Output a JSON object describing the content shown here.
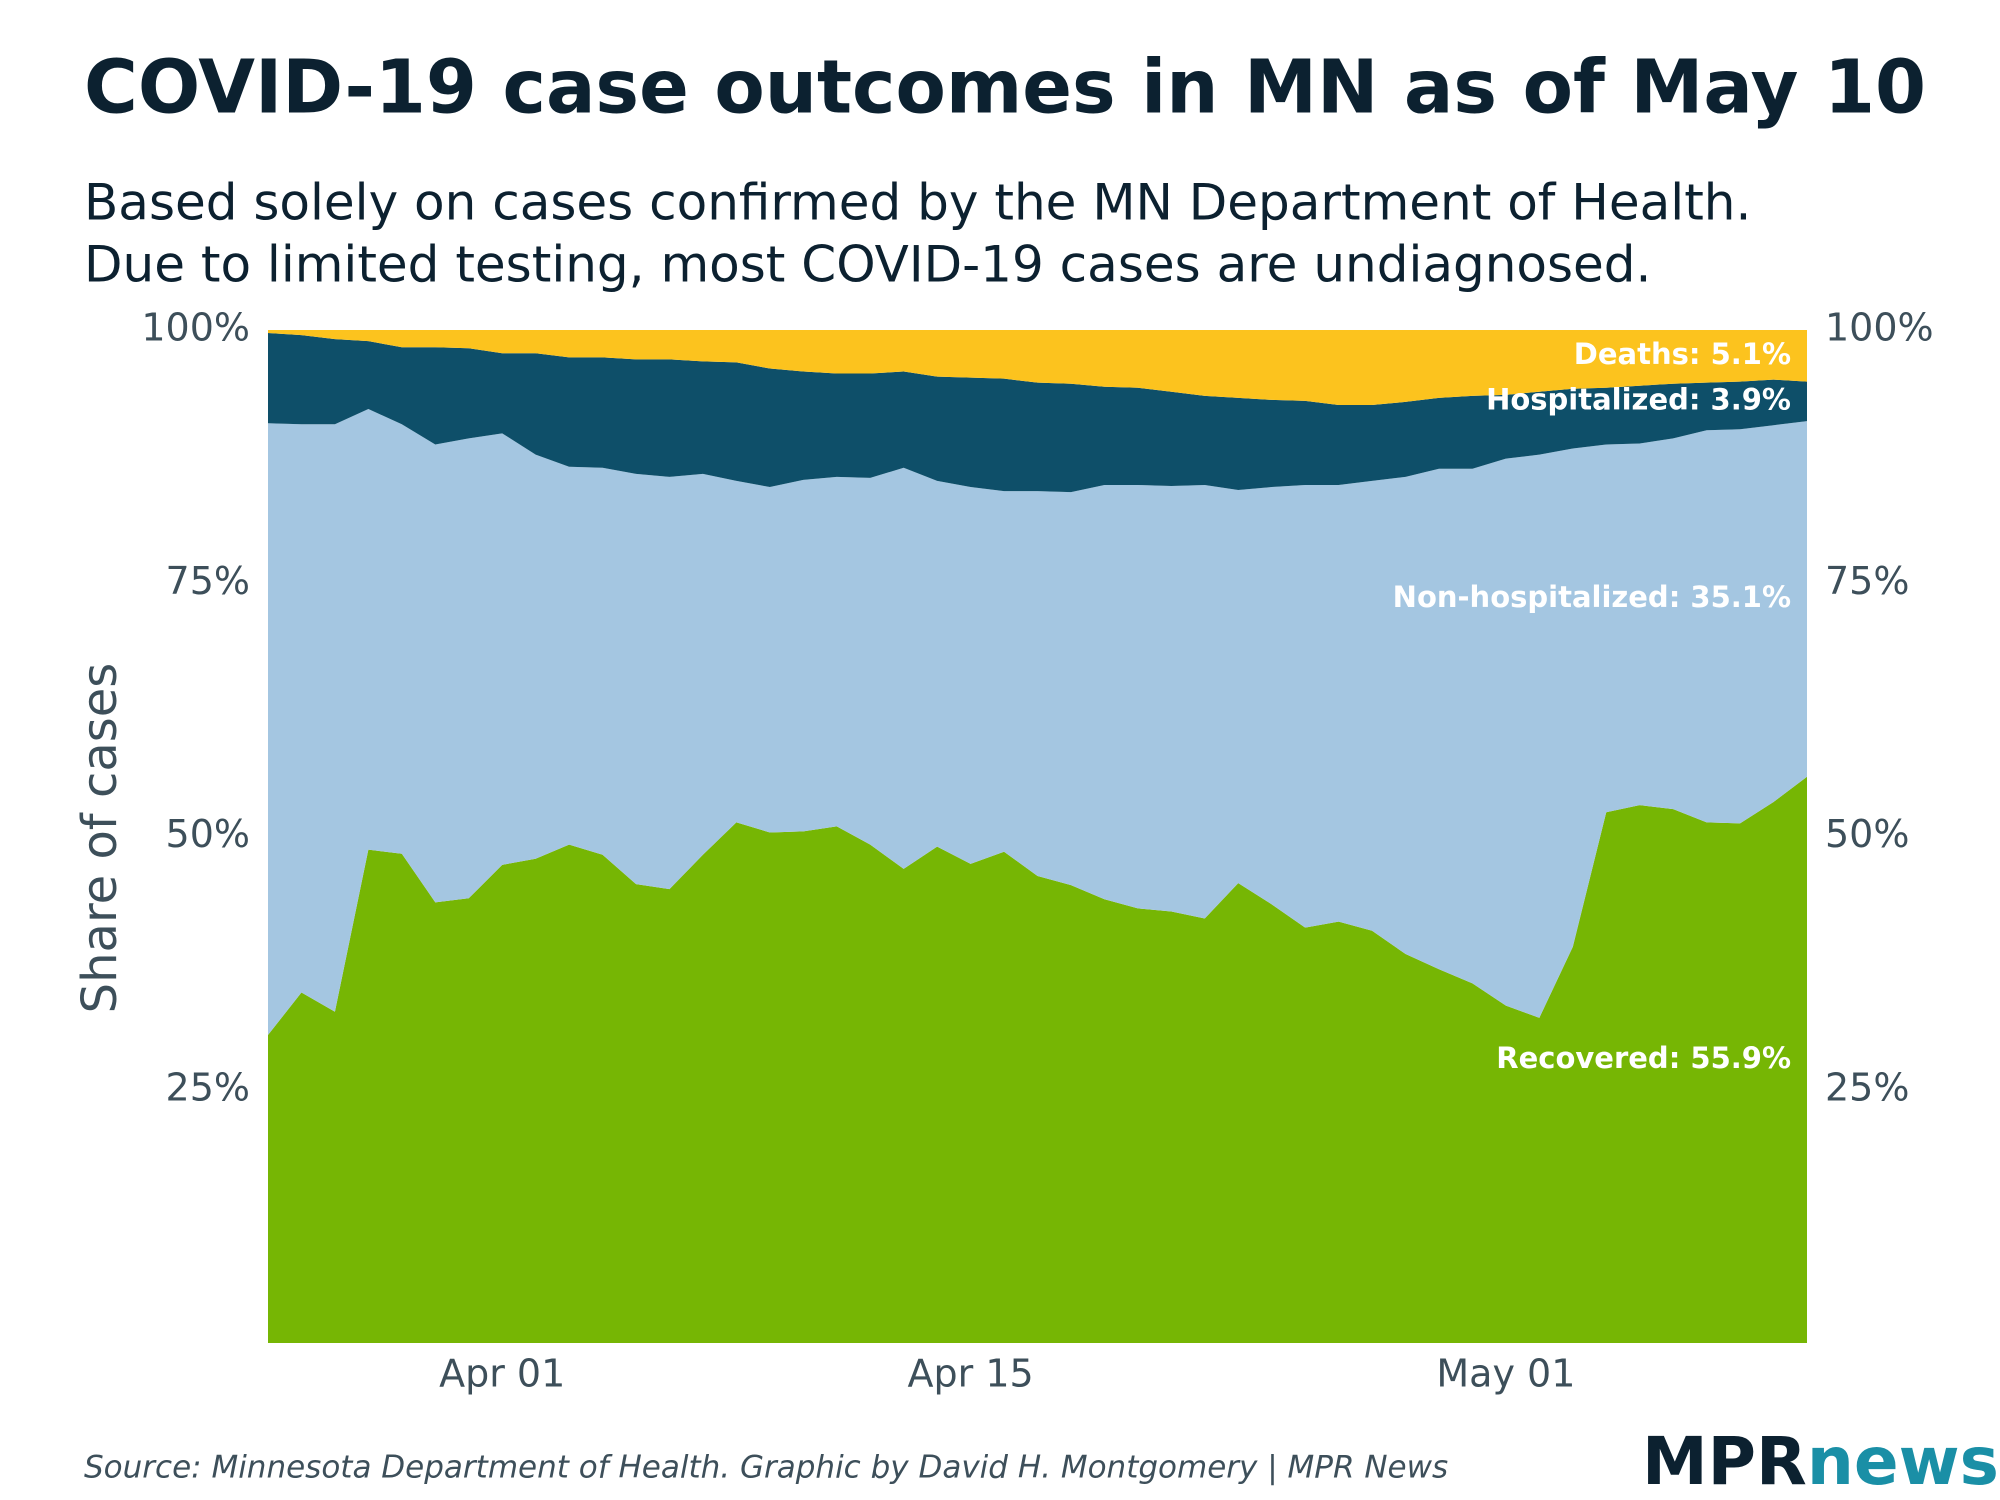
{
  "chart_data": {
    "type": "stacked_area",
    "title": "COVID-19 case outcomes in MN as of May 10",
    "subtitle": [
      "Based solely on cases confirmed by the MN Department of Health.",
      "Due to limited testing, most COVID-19 cases are undiagnosed."
    ],
    "y_label": "Share of cases",
    "source": "Source: Minnesota Department of Health. Graphic by David H. Montgomery | MPR News",
    "logo": {
      "left": "MPR",
      "right": "news"
    },
    "categories": [
      null,
      null,
      null,
      null,
      null,
      null,
      null,
      "Apr 01",
      null,
      null,
      null,
      null,
      null,
      null,
      null,
      null,
      null,
      null,
      null,
      null,
      null,
      "Apr 15",
      null,
      null,
      null,
      null,
      null,
      null,
      null,
      null,
      null,
      null,
      null,
      null,
      null,
      null,
      null,
      "May 01",
      null,
      null,
      null,
      null,
      null,
      null,
      null,
      null,
      null
    ],
    "ylim": [
      0,
      100
    ],
    "yticks": [
      {
        "value": 25,
        "label": "25%"
      },
      {
        "value": 50,
        "label": "50%"
      },
      {
        "value": 75,
        "label": "75%"
      },
      {
        "value": 100,
        "label": "100%"
      }
    ],
    "y2lim": [
      0,
      100
    ],
    "y2ticks": [
      {
        "value": 25,
        "label": "25%"
      },
      {
        "value": 50,
        "label": "50%"
      },
      {
        "value": 75,
        "label": "75%"
      },
      {
        "value": 100,
        "label": "100%"
      }
    ],
    "series": [
      {
        "name": "Recovered",
        "color": "#76b604",
        "end_label": "Recovered: 55.9%",
        "values": [
          30.4,
          34.6,
          32.7,
          48.7,
          48.3,
          43.5,
          43.9,
          47.2,
          47.8,
          49.2,
          48.2,
          45.3,
          44.8,
          48.2,
          51.4,
          50.4,
          50.5,
          51.0,
          49.2,
          46.8,
          49.0,
          47.3,
          48.5,
          46.1,
          45.2,
          43.8,
          42.9,
          42.6,
          41.9,
          45.4,
          43.3,
          41.0,
          41.6,
          40.7,
          38.4,
          36.9,
          35.5,
          33.3,
          32.1,
          39.1,
          52.4,
          53.1,
          52.7,
          51.4,
          51.3,
          53.4,
          55.9
        ]
      },
      {
        "name": "Non-hospitalized",
        "color": "#a4c6e1",
        "end_label": "Non-hospitalized: 35.1%",
        "values": [
          60.4,
          56.1,
          58.0,
          43.5,
          42.4,
          45.2,
          45.4,
          42.6,
          39.9,
          37.3,
          38.2,
          40.5,
          40.7,
          37.6,
          33.7,
          34.1,
          34.7,
          34.5,
          36.2,
          39.6,
          36.1,
          37.2,
          35.6,
          38.0,
          38.8,
          40.9,
          41.8,
          42.0,
          42.8,
          38.8,
          41.2,
          43.7,
          43.1,
          44.4,
          47.1,
          49.4,
          50.8,
          54.0,
          55.6,
          49.2,
          36.3,
          35.7,
          36.6,
          38.7,
          38.9,
          37.2,
          35.1
        ]
      },
      {
        "name": "Hospitalized",
        "color": "#0e4f69",
        "end_label": "Hospitalized: 3.9%",
        "values": [
          8.9,
          8.8,
          8.4,
          6.7,
          7.6,
          9.6,
          8.9,
          7.9,
          10.0,
          10.8,
          10.9,
          11.3,
          11.6,
          11.1,
          11.7,
          11.7,
          10.7,
          10.2,
          10.3,
          9.5,
          10.3,
          10.8,
          11.1,
          10.7,
          10.7,
          9.7,
          9.6,
          9.3,
          8.8,
          9.1,
          8.6,
          8.3,
          7.9,
          7.5,
          7.4,
          7.0,
          7.2,
          6.3,
          6.2,
          5.9,
          5.6,
          5.7,
          5.4,
          4.7,
          4.7,
          4.5,
          3.9
        ]
      },
      {
        "name": "Deaths",
        "color": "#fcc31e",
        "end_label": "Deaths: 5.1%",
        "values": [
          0.3,
          0.5,
          0.9,
          1.1,
          1.7,
          1.7,
          1.8,
          2.3,
          2.3,
          2.7,
          2.7,
          2.9,
          2.9,
          3.1,
          3.2,
          3.8,
          4.1,
          4.3,
          4.3,
          4.1,
          4.6,
          4.7,
          4.8,
          5.2,
          5.3,
          5.6,
          5.7,
          6.1,
          6.5,
          6.7,
          6.9,
          7.0,
          7.4,
          7.4,
          7.1,
          6.7,
          6.5,
          6.4,
          6.1,
          5.8,
          5.7,
          5.5,
          5.3,
          5.2,
          5.1,
          4.9,
          5.1
        ]
      }
    ]
  }
}
